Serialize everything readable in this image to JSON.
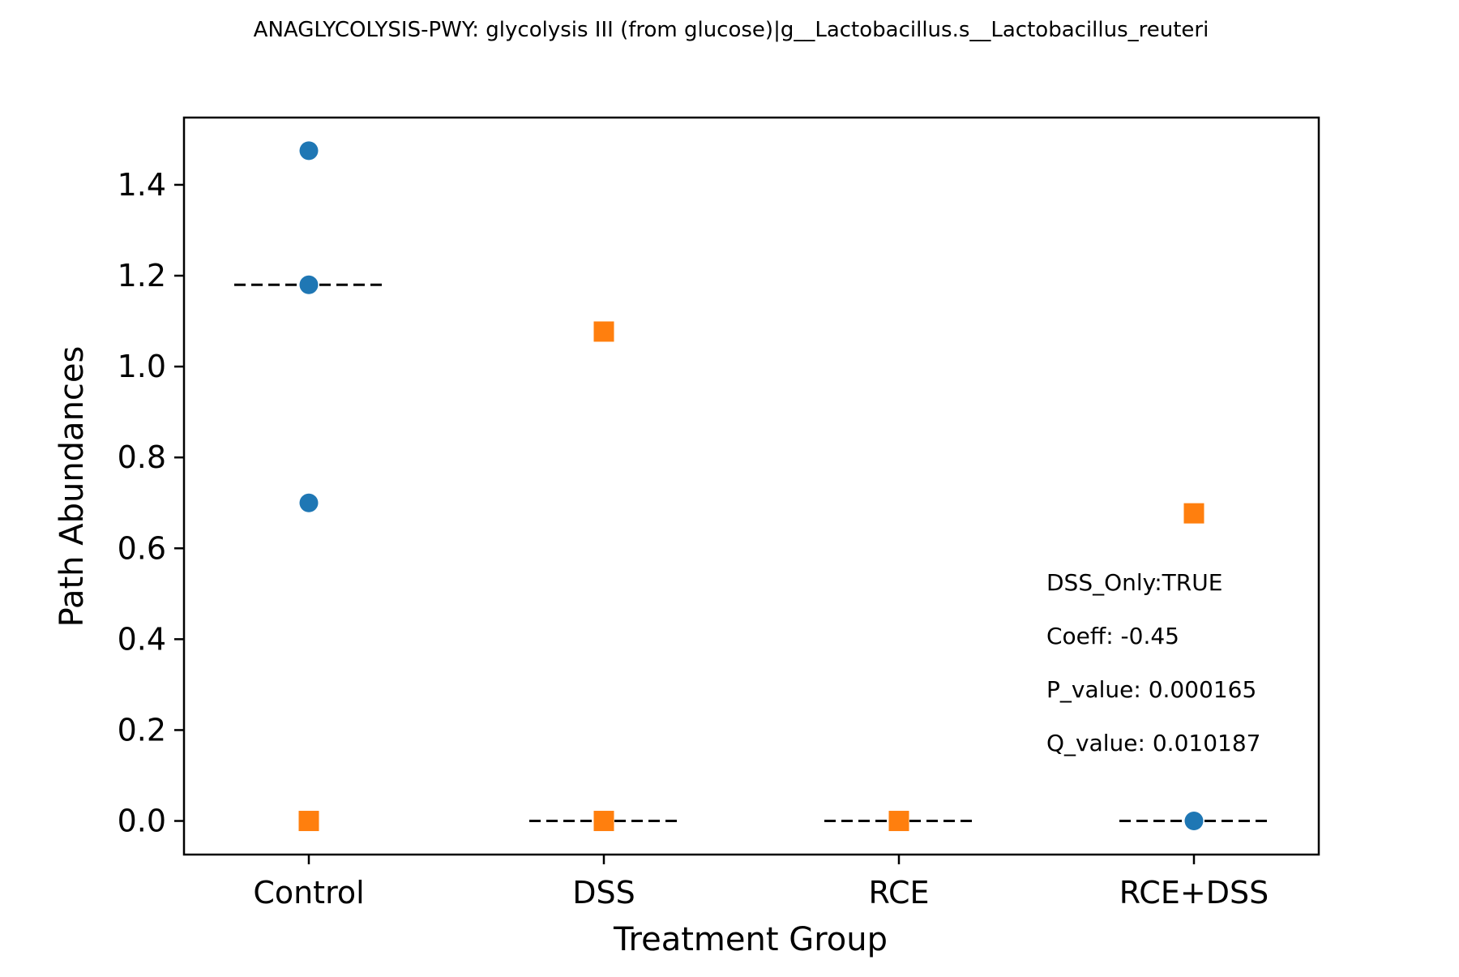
{
  "chart_data": {
    "type": "scatter",
    "title": "ANAGLYCOLYSIS-PWY: glycolysis III (from glucose)|g__Lactobacillus.s__Lactobacillus_reuteri",
    "xlabel": "Treatment Group",
    "ylabel": "Path Abundances",
    "categories": [
      "Control",
      "DSS",
      "RCE",
      "RCE+DSS"
    ],
    "y_ticks": [
      "0.0",
      "0.2",
      "0.4",
      "0.6",
      "0.8",
      "1.0",
      "1.2",
      "1.4"
    ],
    "ylim": [
      -0.074,
      1.548
    ],
    "grid": false,
    "marker_colors": {
      "circle": "#1f77b4",
      "square": "#ff7f0e"
    },
    "series": [
      {
        "marker": "circle",
        "points": [
          {
            "category": "Control",
            "y": 1.475
          },
          {
            "category": "Control",
            "y": 1.18
          },
          {
            "category": "Control",
            "y": 0.7
          },
          {
            "category": "RCE+DSS",
            "y": 0.0
          }
        ]
      },
      {
        "marker": "square",
        "points": [
          {
            "category": "Control",
            "y": 0.0
          },
          {
            "category": "DSS",
            "y": 1.077
          },
          {
            "category": "DSS",
            "y": 0.0
          },
          {
            "category": "RCE",
            "y": 0.0
          },
          {
            "category": "RCE+DSS",
            "y": 0.677
          }
        ]
      }
    ],
    "medians": [
      {
        "category": "Control",
        "y": 1.18
      },
      {
        "category": "DSS",
        "y": 0.0
      },
      {
        "category": "RCE",
        "y": 0.0
      },
      {
        "category": "RCE+DSS",
        "y": 0.0
      }
    ],
    "annotations": [
      "DSS_Only:TRUE",
      "Coeff: -0.45",
      "P_value: 0.000165",
      "Q_value: 0.010187"
    ]
  }
}
